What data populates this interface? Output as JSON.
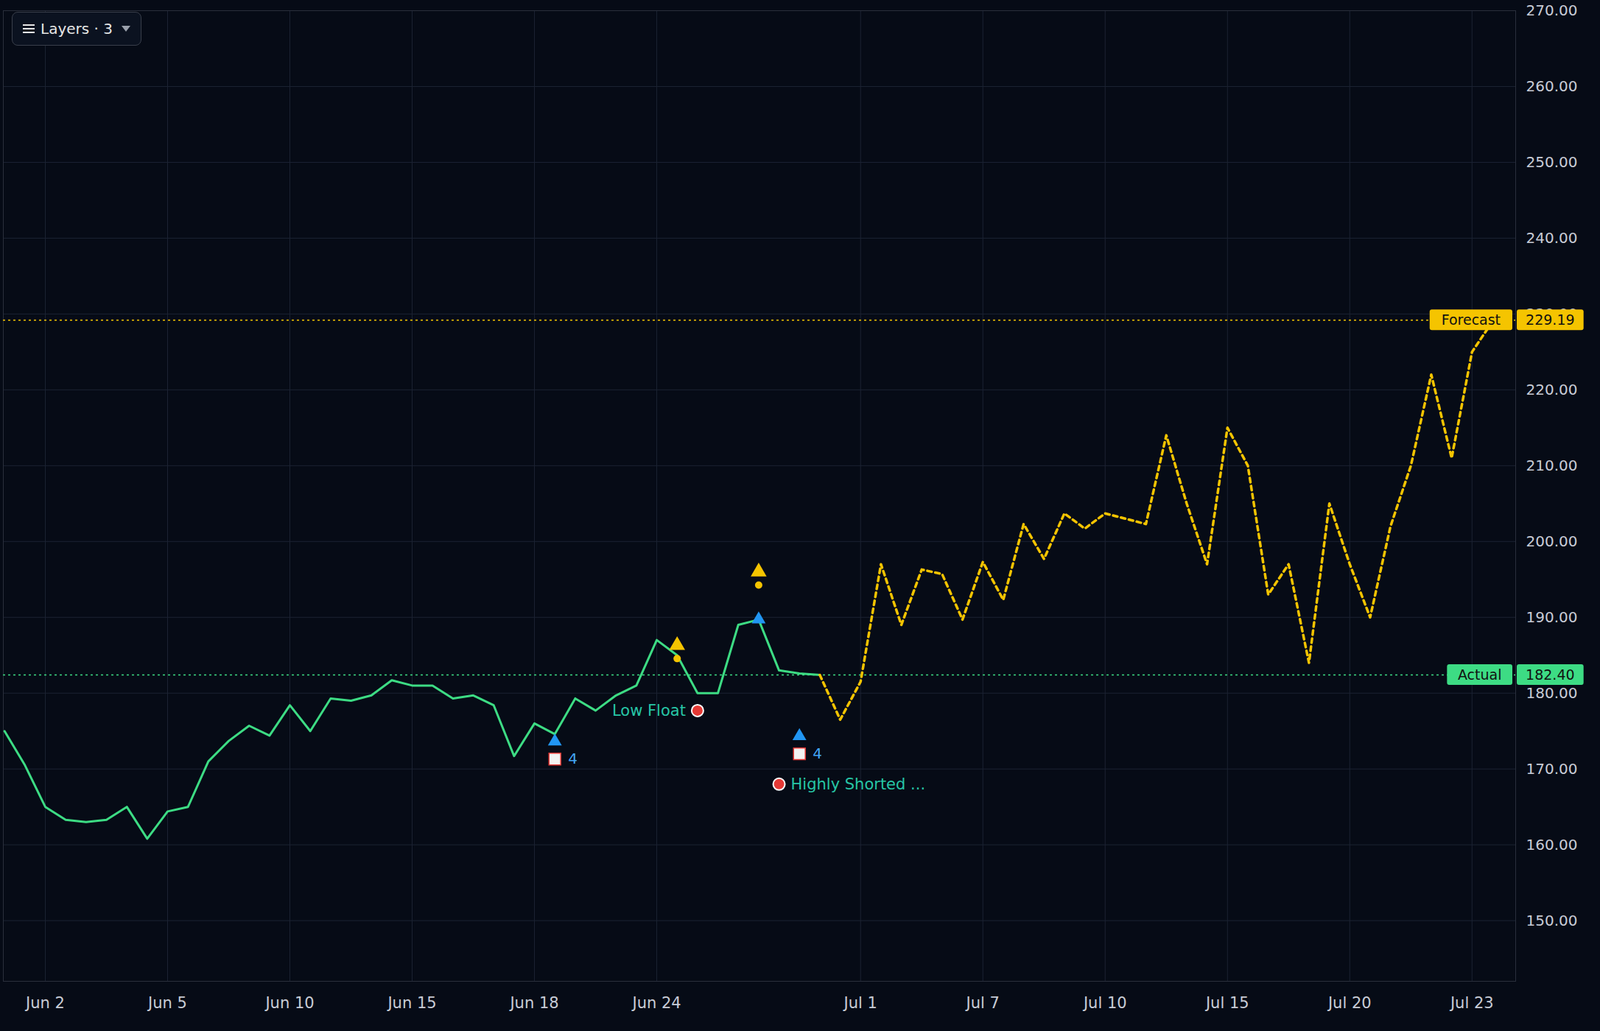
{
  "chart_data": {
    "type": "line",
    "layers_button": "Layers · 3",
    "categories": [
      null,
      null,
      "Jun 2",
      null,
      null,
      null,
      null,
      null,
      "Jun 5",
      null,
      null,
      null,
      null,
      null,
      "Jun 10",
      null,
      null,
      null,
      null,
      null,
      "Jun 15",
      null,
      null,
      null,
      null,
      null,
      "Jun 18",
      null,
      null,
      null,
      null,
      null,
      "Jun 24",
      null,
      null,
      null,
      null,
      null,
      null,
      null,
      null,
      null,
      "Jul 1",
      null,
      null,
      null,
      null,
      null,
      "Jul 7",
      null,
      null,
      null,
      null,
      null,
      "Jul 10",
      null,
      null,
      null,
      null,
      null,
      "Jul 15",
      null,
      null,
      null,
      null,
      null,
      "Jul 20",
      null,
      null,
      null,
      null,
      null,
      "Jul 23",
      null
    ],
    "series": [
      {
        "name": "Actual",
        "color": "#3ddc84",
        "line_style": "solid",
        "values": [
          175,
          170.5,
          165,
          163.3,
          163,
          163.3,
          165,
          160.8,
          164.4,
          165,
          171,
          173.7,
          175.7,
          174.4,
          178.4,
          175,
          179.3,
          179,
          179.7,
          181.7,
          181,
          181,
          179.3,
          179.7,
          178.4,
          171.7,
          176,
          174.6,
          179.3,
          177.7,
          179.7,
          181,
          187,
          185,
          180,
          180,
          189,
          189.7,
          183,
          182.6,
          182.4,
          null,
          null,
          null,
          null,
          null,
          null,
          null,
          null,
          null,
          null,
          null,
          null,
          null,
          null,
          null,
          null,
          null,
          null,
          null,
          null,
          null,
          null,
          null,
          null,
          null,
          null,
          null,
          null,
          null,
          null,
          null,
          null,
          null
        ]
      },
      {
        "name": "Forecast",
        "color": "#f5c400",
        "line_style": "dotted",
        "values": [
          null,
          null,
          null,
          null,
          null,
          null,
          null,
          null,
          null,
          null,
          null,
          null,
          null,
          null,
          null,
          null,
          null,
          null,
          null,
          null,
          null,
          null,
          null,
          null,
          null,
          null,
          null,
          null,
          null,
          null,
          null,
          null,
          null,
          null,
          null,
          null,
          null,
          null,
          null,
          null,
          182.4,
          176.5,
          181.5,
          197,
          189,
          196.3,
          195.7,
          189.7,
          197.3,
          192.3,
          202.3,
          197.7,
          203.7,
          201.7,
          203.7,
          203,
          202.3,
          214,
          205,
          197,
          215,
          210,
          193,
          197,
          184,
          205,
          197,
          190,
          202,
          210,
          222,
          211,
          225,
          229
        ]
      }
    ],
    "reference_lines": [
      {
        "name": "Forecast",
        "value": 229.19,
        "label": "229.19",
        "color": "#f5c400"
      },
      {
        "name": "Actual",
        "value": 182.4,
        "label": "182.40",
        "color": "#3ddc84"
      }
    ],
    "annotations": [
      {
        "text": "4",
        "x": 27,
        "y": 174.6,
        "marker": "arrow"
      },
      {
        "text": "4",
        "x": 39,
        "y": 175.3,
        "marker": "arrow"
      },
      {
        "x": 37,
        "y": 190.7,
        "marker": "arrow"
      },
      {
        "x": 33,
        "y": 186.3,
        "marker": "bell"
      },
      {
        "x": 37,
        "y": 196,
        "marker": "bell"
      },
      {
        "text": "Low Float",
        "x": 34,
        "y": 177.7,
        "marker": "target"
      },
      {
        "text": "Highly Shorted ...",
        "x": 38,
        "y": 168,
        "marker": "target"
      }
    ],
    "ylim": [
      142,
      270
    ],
    "yticks": [
      {
        "value": 150,
        "label": "150.00"
      },
      {
        "value": 160,
        "label": "160.00"
      },
      {
        "value": 170,
        "label": "170.00"
      },
      {
        "value": 180,
        "label": "180.00"
      },
      {
        "value": 190,
        "label": "190.00"
      },
      {
        "value": 200,
        "label": "200.00"
      },
      {
        "value": 210,
        "label": "210.00"
      },
      {
        "value": 220,
        "label": "220.00"
      },
      {
        "value": 230,
        "label": "230.00"
      },
      {
        "value": 240,
        "label": "240.00"
      },
      {
        "value": 250,
        "label": "250.00"
      },
      {
        "value": 260,
        "label": "260.00"
      },
      {
        "value": 270,
        "label": "270.00"
      }
    ],
    "grid": true
  }
}
